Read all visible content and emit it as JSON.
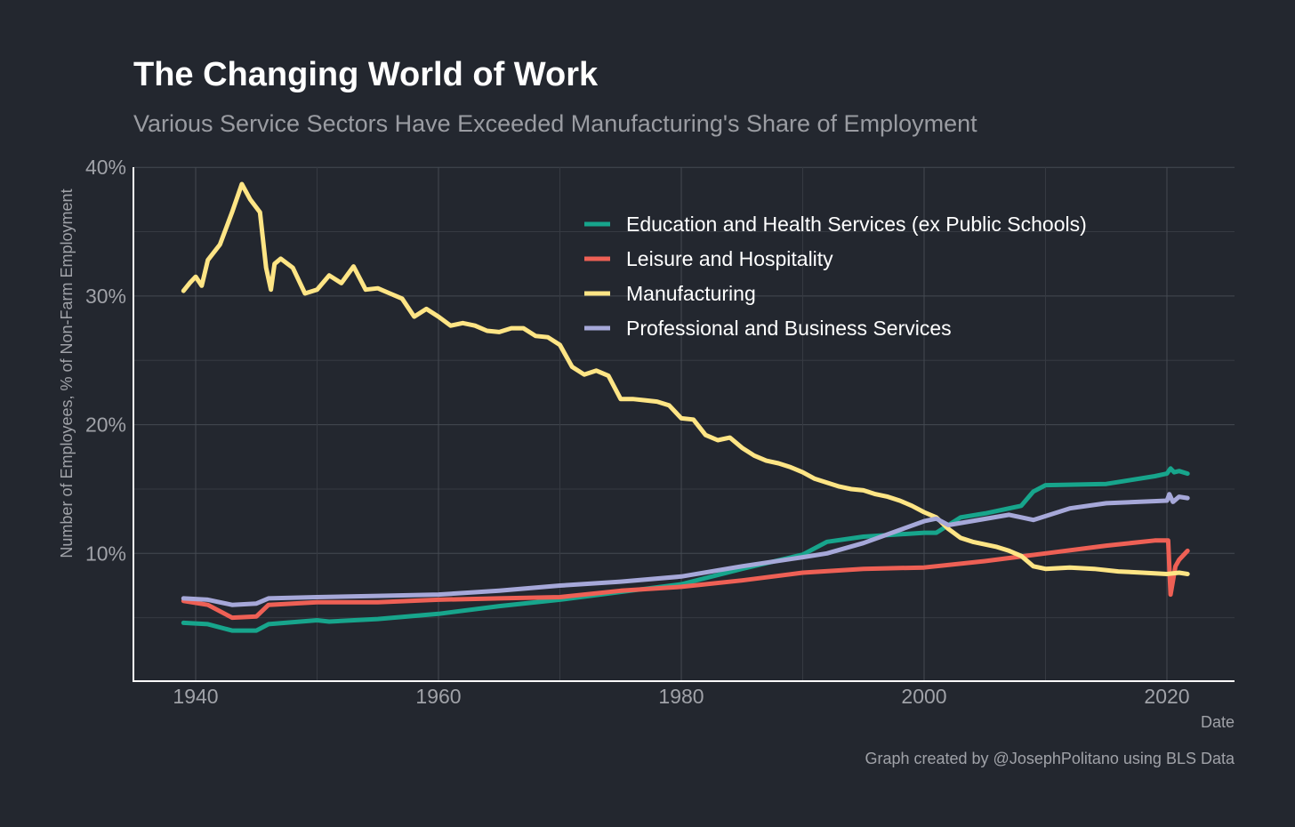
{
  "chart_data": {
    "type": "line",
    "title": "The Changing World of Work",
    "subtitle": "Various Service Sectors Have Exceeded Manufacturing's Share of Employment",
    "xlabel": "Date",
    "ylabel": "Number of Employees, % of Non-Farm Employment",
    "caption": "Graph created by @JosephPolitano using BLS Data",
    "xlim": [
      1935,
      2026
    ],
    "ylim": [
      0,
      40
    ],
    "x_ticks": [
      1940,
      1960,
      1980,
      2000,
      2020
    ],
    "x_tick_labels": [
      "1940",
      "1960",
      "1980",
      "2000",
      "2020"
    ],
    "y_ticks": [
      10,
      20,
      30,
      40
    ],
    "y_tick_labels": [
      "10%",
      "20%",
      "30%",
      "40%"
    ],
    "grid": true,
    "legend_position": "top-right",
    "series": [
      {
        "name": "Education and Health Services (ex Public Schools)",
        "color": "#17a58c",
        "points": [
          [
            1939,
            4.6
          ],
          [
            1941,
            4.5
          ],
          [
            1943,
            4.0
          ],
          [
            1945,
            4.0
          ],
          [
            1946,
            4.5
          ],
          [
            1950,
            4.8
          ],
          [
            1951,
            4.7
          ],
          [
            1955,
            4.9
          ],
          [
            1960,
            5.3
          ],
          [
            1965,
            5.9
          ],
          [
            1970,
            6.4
          ],
          [
            1975,
            7.0
          ],
          [
            1980,
            7.6
          ],
          [
            1985,
            8.8
          ],
          [
            1990,
            9.9
          ],
          [
            1992,
            10.9
          ],
          [
            1995,
            11.3
          ],
          [
            2000,
            11.6
          ],
          [
            2001,
            11.6
          ],
          [
            2003,
            12.8
          ],
          [
            2005,
            13.1
          ],
          [
            2008,
            13.7
          ],
          [
            2009,
            14.8
          ],
          [
            2010,
            15.3
          ],
          [
            2015,
            15.4
          ],
          [
            2019,
            16.0
          ],
          [
            2020,
            16.2
          ],
          [
            2020.3,
            16.6
          ],
          [
            2020.6,
            16.3
          ],
          [
            2021,
            16.4
          ],
          [
            2021.7,
            16.2
          ]
        ]
      },
      {
        "name": "Leisure and Hospitality",
        "color": "#ee6055",
        "points": [
          [
            1939,
            6.3
          ],
          [
            1941,
            6.0
          ],
          [
            1943,
            5.0
          ],
          [
            1945,
            5.1
          ],
          [
            1946,
            6.0
          ],
          [
            1950,
            6.2
          ],
          [
            1955,
            6.2
          ],
          [
            1960,
            6.4
          ],
          [
            1965,
            6.5
          ],
          [
            1970,
            6.6
          ],
          [
            1975,
            7.1
          ],
          [
            1980,
            7.4
          ],
          [
            1985,
            7.9
          ],
          [
            1990,
            8.5
          ],
          [
            1995,
            8.8
          ],
          [
            2000,
            8.9
          ],
          [
            2005,
            9.4
          ],
          [
            2010,
            10.0
          ],
          [
            2015,
            10.6
          ],
          [
            2019,
            11.0
          ],
          [
            2020.1,
            11.0
          ],
          [
            2020.3,
            6.8
          ],
          [
            2020.7,
            9.0
          ],
          [
            2021,
            9.5
          ],
          [
            2021.7,
            10.2
          ]
        ]
      },
      {
        "name": "Manufacturing",
        "color": "#ffe585",
        "points": [
          [
            1939,
            30.4
          ],
          [
            1939.5,
            31
          ],
          [
            1940,
            31.5
          ],
          [
            1940.5,
            30.8
          ],
          [
            1941,
            32.8
          ],
          [
            1942,
            34
          ],
          [
            1943,
            36.5
          ],
          [
            1943.8,
            38.7
          ],
          [
            1944.5,
            37.5
          ],
          [
            1945.3,
            36.5
          ],
          [
            1945.8,
            32.2
          ],
          [
            1946.2,
            30.5
          ],
          [
            1946.5,
            32.5
          ],
          [
            1947,
            32.9
          ],
          [
            1948,
            32.2
          ],
          [
            1949,
            30.2
          ],
          [
            1950,
            30.5
          ],
          [
            1951,
            31.6
          ],
          [
            1952,
            31.0
          ],
          [
            1953,
            32.3
          ],
          [
            1954,
            30.5
          ],
          [
            1955,
            30.6
          ],
          [
            1956,
            30.2
          ],
          [
            1957,
            29.8
          ],
          [
            1958,
            28.4
          ],
          [
            1959,
            29.0
          ],
          [
            1960,
            28.4
          ],
          [
            1961,
            27.7
          ],
          [
            1962,
            27.9
          ],
          [
            1963,
            27.7
          ],
          [
            1964,
            27.3
          ],
          [
            1965,
            27.2
          ],
          [
            1966,
            27.5
          ],
          [
            1967,
            27.5
          ],
          [
            1968,
            26.9
          ],
          [
            1969,
            26.8
          ],
          [
            1970,
            26.2
          ],
          [
            1971,
            24.5
          ],
          [
            1972,
            23.9
          ],
          [
            1973,
            24.2
          ],
          [
            1974,
            23.8
          ],
          [
            1975,
            22.0
          ],
          [
            1976,
            22.0
          ],
          [
            1977,
            21.9
          ],
          [
            1978,
            21.8
          ],
          [
            1979,
            21.5
          ],
          [
            1980,
            20.5
          ],
          [
            1981,
            20.4
          ],
          [
            1982,
            19.2
          ],
          [
            1983,
            18.8
          ],
          [
            1984,
            19.0
          ],
          [
            1985,
            18.2
          ],
          [
            1986,
            17.6
          ],
          [
            1987,
            17.2
          ],
          [
            1988,
            17.0
          ],
          [
            1989,
            16.7
          ],
          [
            1990,
            16.3
          ],
          [
            1991,
            15.8
          ],
          [
            1992,
            15.5
          ],
          [
            1993,
            15.2
          ],
          [
            1994,
            15.0
          ],
          [
            1995,
            14.9
          ],
          [
            1996,
            14.6
          ],
          [
            1997,
            14.4
          ],
          [
            1998,
            14.1
          ],
          [
            1999,
            13.7
          ],
          [
            2000,
            13.2
          ],
          [
            2001,
            12.8
          ],
          [
            2002,
            11.9
          ],
          [
            2003,
            11.2
          ],
          [
            2004,
            10.9
          ],
          [
            2005,
            10.7
          ],
          [
            2006,
            10.5
          ],
          [
            2007,
            10.2
          ],
          [
            2008,
            9.8
          ],
          [
            2009,
            9.0
          ],
          [
            2010,
            8.8
          ],
          [
            2012,
            8.9
          ],
          [
            2014,
            8.8
          ],
          [
            2016,
            8.6
          ],
          [
            2018,
            8.5
          ],
          [
            2020,
            8.4
          ],
          [
            2021,
            8.5
          ],
          [
            2021.7,
            8.4
          ]
        ]
      },
      {
        "name": "Professional and Business Services",
        "color": "#a6a8d9",
        "points": [
          [
            1939,
            6.5
          ],
          [
            1941,
            6.4
          ],
          [
            1943,
            6.0
          ],
          [
            1945,
            6.1
          ],
          [
            1946,
            6.5
          ],
          [
            1950,
            6.6
          ],
          [
            1955,
            6.7
          ],
          [
            1960,
            6.8
          ],
          [
            1965,
            7.1
          ],
          [
            1970,
            7.5
          ],
          [
            1975,
            7.8
          ],
          [
            1980,
            8.2
          ],
          [
            1985,
            9.0
          ],
          [
            1990,
            9.7
          ],
          [
            1992,
            10.0
          ],
          [
            1995,
            10.8
          ],
          [
            2000,
            12.5
          ],
          [
            2001,
            12.7
          ],
          [
            2002,
            12.2
          ],
          [
            2007,
            13.0
          ],
          [
            2009,
            12.6
          ],
          [
            2012,
            13.5
          ],
          [
            2015,
            13.9
          ],
          [
            2020,
            14.1
          ],
          [
            2020.2,
            14.6
          ],
          [
            2020.5,
            14.0
          ],
          [
            2021,
            14.4
          ],
          [
            2021.7,
            14.3
          ]
        ]
      }
    ]
  }
}
